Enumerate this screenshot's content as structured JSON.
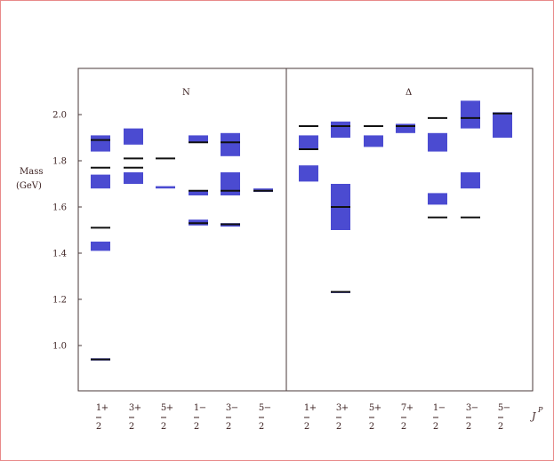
{
  "chart_data": {
    "type": "other",
    "ylabel_line1": "Mass",
    "ylabel_line2": "(GeV)",
    "xlabel": "J",
    "xlabel_sup": "P",
    "ylim": [
      0.8,
      2.2
    ],
    "yticks": [
      1.0,
      1.2,
      1.4,
      1.6,
      1.8,
      2.0
    ],
    "ytick_labels": [
      "1.0",
      "1.2",
      "1.4",
      "1.6",
      "1.8",
      "2.0"
    ],
    "colors": {
      "box": "#4b4bd1",
      "line": "#111111",
      "axis": "#4a3a3a"
    },
    "panels": [
      {
        "title": "N",
        "categories": [
          {
            "num": "1",
            "sign": "+",
            "den": "2"
          },
          {
            "num": "3",
            "sign": "+",
            "den": "2"
          },
          {
            "num": "5",
            "sign": "+",
            "den": "2"
          },
          {
            "num": "1",
            "sign": "−",
            "den": "2"
          },
          {
            "num": "3",
            "sign": "−",
            "den": "2"
          },
          {
            "num": "5",
            "sign": "−",
            "den": "2"
          }
        ],
        "boxes": [
          {
            "cat": 0,
            "low": 0.935,
            "high": 0.945
          },
          {
            "cat": 0,
            "low": 1.41,
            "high": 1.45
          },
          {
            "cat": 0,
            "low": 1.68,
            "high": 1.74
          },
          {
            "cat": 0,
            "low": 1.84,
            "high": 1.91
          },
          {
            "cat": 1,
            "low": 1.7,
            "high": 1.75
          },
          {
            "cat": 1,
            "low": 1.87,
            "high": 1.94
          },
          {
            "cat": 2,
            "low": 1.68,
            "high": 1.69
          },
          {
            "cat": 3,
            "low": 1.52,
            "high": 1.545
          },
          {
            "cat": 3,
            "low": 1.65,
            "high": 1.67
          },
          {
            "cat": 3,
            "low": 1.88,
            "high": 1.91
          },
          {
            "cat": 4,
            "low": 1.515,
            "high": 1.53
          },
          {
            "cat": 4,
            "low": 1.65,
            "high": 1.75
          },
          {
            "cat": 4,
            "low": 1.82,
            "high": 1.92
          },
          {
            "cat": 5,
            "low": 1.665,
            "high": 1.68
          }
        ],
        "lines": [
          {
            "cat": 0,
            "value": 0.94
          },
          {
            "cat": 0,
            "value": 1.51
          },
          {
            "cat": 0,
            "value": 1.77
          },
          {
            "cat": 0,
            "value": 1.89
          },
          {
            "cat": 1,
            "value": 1.77
          },
          {
            "cat": 1,
            "value": 1.81
          },
          {
            "cat": 2,
            "value": 1.81
          },
          {
            "cat": 3,
            "value": 1.53
          },
          {
            "cat": 3,
            "value": 1.67
          },
          {
            "cat": 3,
            "value": 1.88
          },
          {
            "cat": 4,
            "value": 1.525
          },
          {
            "cat": 4,
            "value": 1.67
          },
          {
            "cat": 4,
            "value": 1.88
          },
          {
            "cat": 5,
            "value": 1.67
          }
        ]
      },
      {
        "title": "Δ",
        "categories": [
          {
            "num": "1",
            "sign": "+",
            "den": "2"
          },
          {
            "num": "3",
            "sign": "+",
            "den": "2"
          },
          {
            "num": "5",
            "sign": "+",
            "den": "2"
          },
          {
            "num": "7",
            "sign": "+",
            "den": "2"
          },
          {
            "num": "1",
            "sign": "−",
            "den": "2"
          },
          {
            "num": "3",
            "sign": "−",
            "den": "2"
          },
          {
            "num": "5",
            "sign": "−",
            "den": "2"
          }
        ],
        "boxes": [
          {
            "cat": 0,
            "low": 1.71,
            "high": 1.78
          },
          {
            "cat": 0,
            "low": 1.85,
            "high": 1.91
          },
          {
            "cat": 1,
            "low": 1.23,
            "high": 1.235
          },
          {
            "cat": 1,
            "low": 1.5,
            "high": 1.7
          },
          {
            "cat": 1,
            "low": 1.9,
            "high": 1.97
          },
          {
            "cat": 2,
            "low": 1.86,
            "high": 1.91
          },
          {
            "cat": 3,
            "low": 1.92,
            "high": 1.96
          },
          {
            "cat": 4,
            "low": 1.61,
            "high": 1.66
          },
          {
            "cat": 4,
            "low": 1.84,
            "high": 1.92
          },
          {
            "cat": 5,
            "low": 1.68,
            "high": 1.75
          },
          {
            "cat": 5,
            "low": 1.94,
            "high": 2.06
          },
          {
            "cat": 6,
            "low": 1.9,
            "high": 2.01
          }
        ],
        "lines": [
          {
            "cat": 0,
            "value": 1.85
          },
          {
            "cat": 0,
            "value": 1.95
          },
          {
            "cat": 1,
            "value": 1.232
          },
          {
            "cat": 1,
            "value": 1.6
          },
          {
            "cat": 1,
            "value": 1.95
          },
          {
            "cat": 2,
            "value": 1.95
          },
          {
            "cat": 3,
            "value": 1.95
          },
          {
            "cat": 4,
            "value": 1.555
          },
          {
            "cat": 4,
            "value": 1.985
          },
          {
            "cat": 5,
            "value": 1.555
          },
          {
            "cat": 5,
            "value": 1.985
          },
          {
            "cat": 6,
            "value": 2.005
          }
        ]
      }
    ]
  }
}
